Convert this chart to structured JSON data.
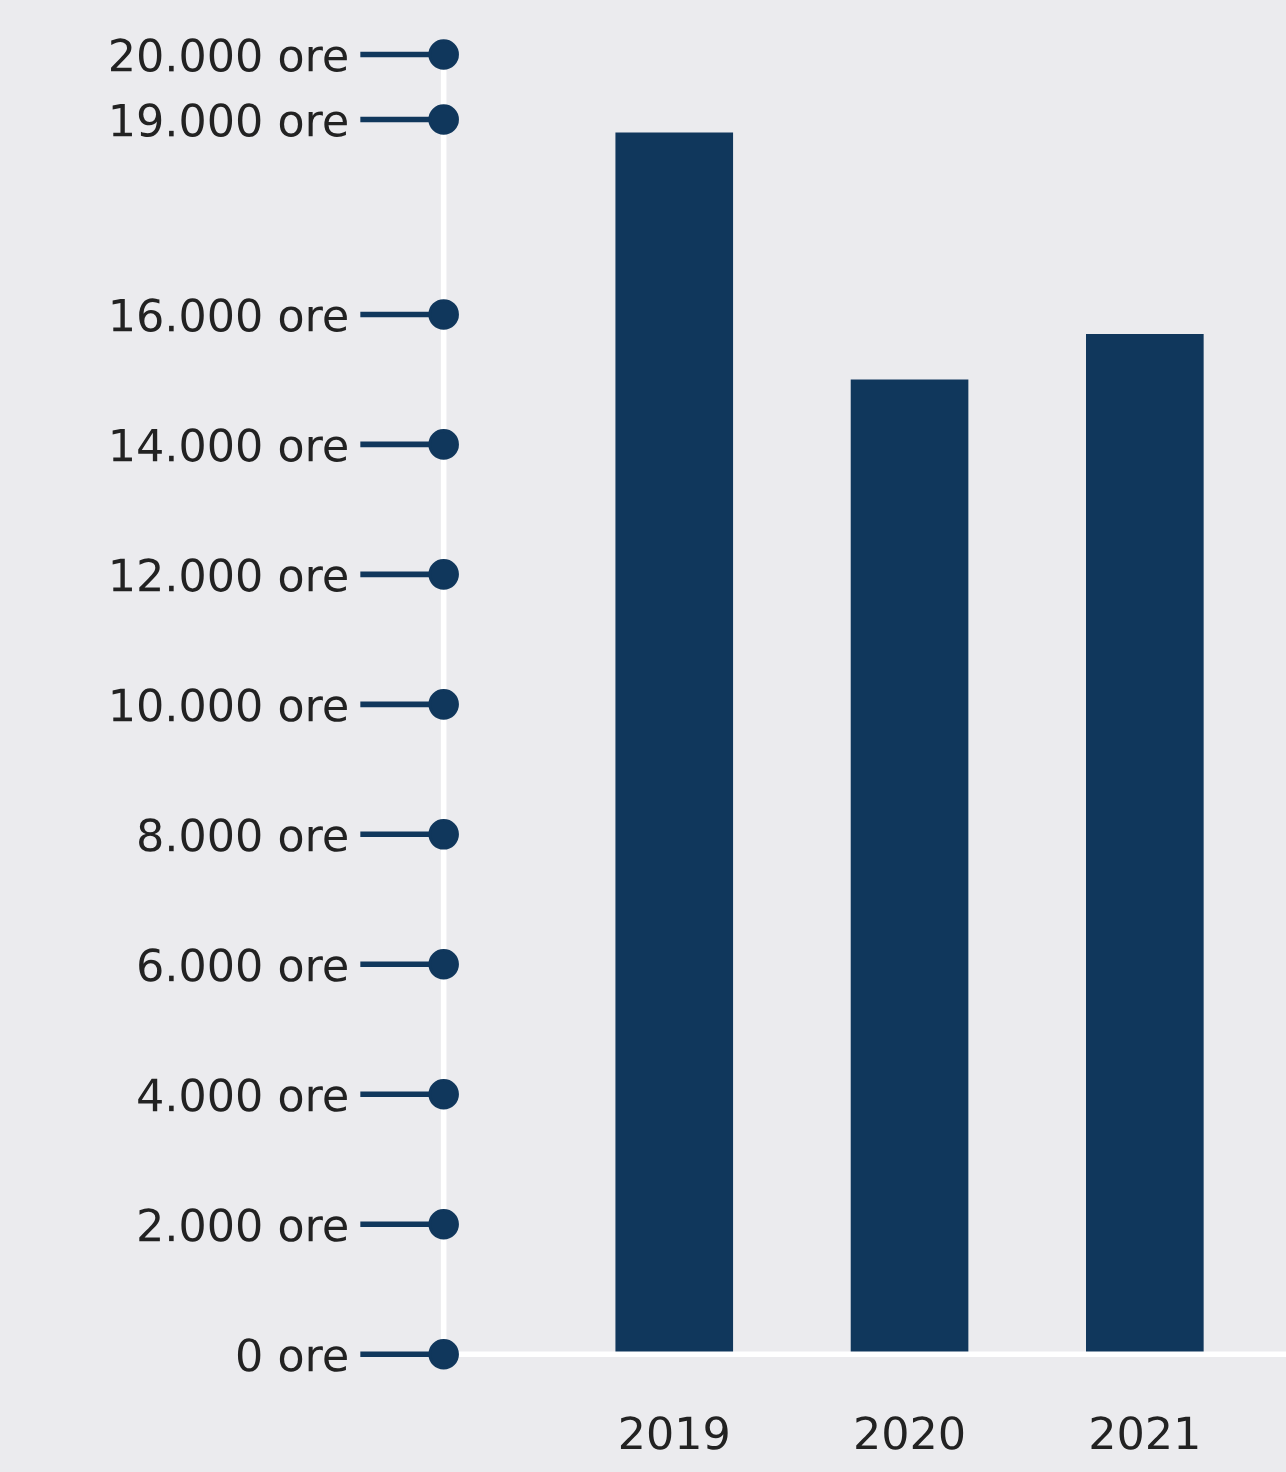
{
  "chart_data": {
    "type": "bar",
    "categories": [
      "2019",
      "2020",
      "2021"
    ],
    "values": [
      18800,
      15000,
      15700
    ],
    "color": "#10375c",
    "ylim": [
      0,
      20000
    ],
    "yticks": [
      {
        "value": 0,
        "label": "0 ore"
      },
      {
        "value": 2000,
        "label": "2.000 ore"
      },
      {
        "value": 4000,
        "label": "4.000 ore"
      },
      {
        "value": 6000,
        "label": "6.000 ore"
      },
      {
        "value": 8000,
        "label": "8.000 ore"
      },
      {
        "value": 10000,
        "label": "10.000 ore"
      },
      {
        "value": 12000,
        "label": "12.000 ore"
      },
      {
        "value": 14000,
        "label": "14.000 ore"
      },
      {
        "value": 16000,
        "label": "16.000 ore"
      },
      {
        "value": 19000,
        "label": "19.000 ore"
      },
      {
        "value": 20000,
        "label": "20.000 ore"
      }
    ],
    "grid": false,
    "legend": false
  }
}
